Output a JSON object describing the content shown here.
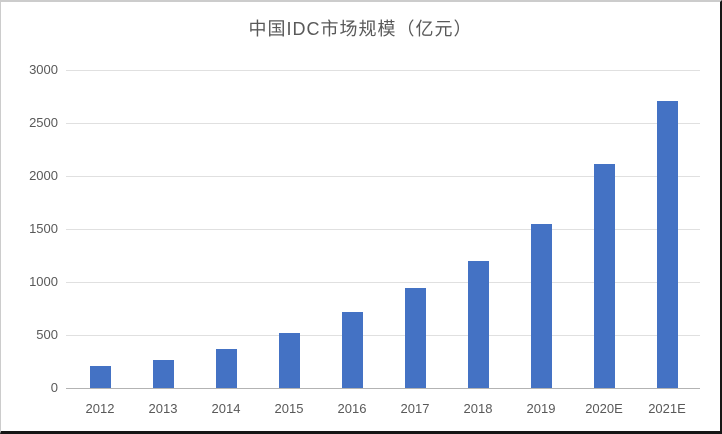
{
  "chart_data": {
    "type": "bar",
    "title": "中国IDC市场规模（亿元）",
    "categories": [
      "2012",
      "2013",
      "2014",
      "2015",
      "2016",
      "2017",
      "2018",
      "2019",
      "2020E",
      "2021E"
    ],
    "values": [
      210,
      262,
      372,
      520,
      715,
      945,
      1200,
      1550,
      2110,
      2710
    ],
    "xlabel": "",
    "ylabel": "",
    "ylim": [
      0,
      3000
    ],
    "yticks": [
      0,
      500,
      1000,
      1500,
      2000,
      2500,
      3000
    ],
    "grid": true,
    "legend": false,
    "colors": {
      "bar": "#4472C4",
      "gridline": "#e0e0e0",
      "axis_line": "#b3b3b3",
      "label_text": "#595959",
      "title_text": "#595959",
      "background": "#ffffff"
    }
  }
}
